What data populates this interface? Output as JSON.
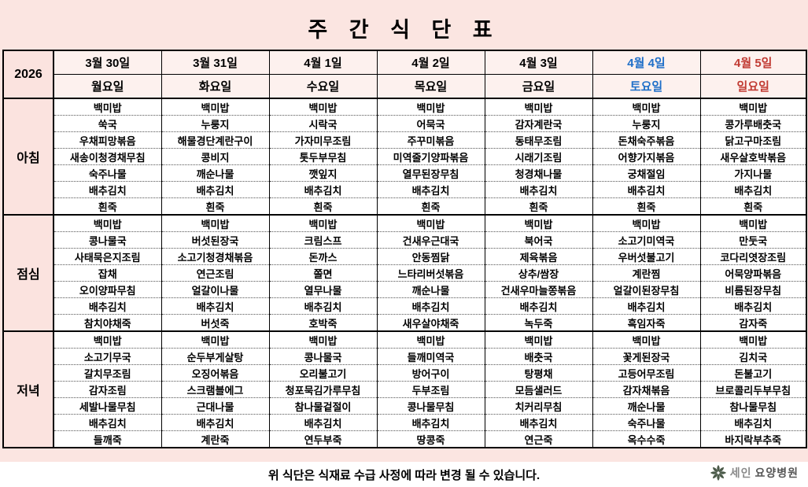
{
  "title": "주 간 식 단 표",
  "year": "2026",
  "colors": {
    "background": "#FBE5E1",
    "header_cell": "#FDF1EE",
    "saturday_text": "#1F6FC8",
    "sunday_text": "#C13B33",
    "grid_line": "#000000"
  },
  "days": [
    {
      "date": "3월 30일",
      "weekday": "월요일",
      "color": "#000000"
    },
    {
      "date": "3월 31일",
      "weekday": "화요일",
      "color": "#000000"
    },
    {
      "date": "4월 1일",
      "weekday": "수요일",
      "color": "#000000"
    },
    {
      "date": "4월 2일",
      "weekday": "목요일",
      "color": "#000000"
    },
    {
      "date": "4월 3일",
      "weekday": "금요일",
      "color": "#000000"
    },
    {
      "date": "4월 4일",
      "weekday": "토요일",
      "color": "#1F6FC8"
    },
    {
      "date": "4월 5일",
      "weekday": "일요일",
      "color": "#C13B33"
    }
  ],
  "sections": [
    {
      "label": "아침",
      "menus": [
        [
          "백미밥",
          "쑥국",
          "우채피망볶음",
          "새송이청경채무침",
          "숙주나물",
          "배추김치",
          "흰죽"
        ],
        [
          "백미밥",
          "누룽지",
          "해물경단계란구이",
          "콩비지",
          "깨순나물",
          "배추김치",
          "흰죽"
        ],
        [
          "백미밥",
          "시락국",
          "가자미무조림",
          "톳두부무침",
          "깻잎지",
          "배추김치",
          "흰죽"
        ],
        [
          "백미밥",
          "어묵국",
          "주꾸미볶음",
          "미역줄기양파볶음",
          "열무된장무침",
          "배추김치",
          "흰죽"
        ],
        [
          "백미밥",
          "감자계란국",
          "동태무조림",
          "시래기조림",
          "청경채나물",
          "배추김치",
          "흰죽"
        ],
        [
          "백미밥",
          "누룽지",
          "돈채숙주볶음",
          "어향가지볶음",
          "궁채절임",
          "배추김치",
          "흰죽"
        ],
        [
          "백미밥",
          "콩가루배춧국",
          "닭고구마조림",
          "새우살호박볶음",
          "가지나물",
          "배추김치",
          "흰죽"
        ]
      ]
    },
    {
      "label": "점심",
      "menus": [
        [
          "백미밥",
          "콩나물국",
          "사태묵은지조림",
          "잡채",
          "오이양파무침",
          "배추김치",
          "참치야채죽"
        ],
        [
          "백미밥",
          "버섯된장국",
          "소고기청경채볶음",
          "연근조림",
          "얼갈이나물",
          "배추김치",
          "버섯죽"
        ],
        [
          "백미밥",
          "크림스프",
          "돈까스",
          "쫄면",
          "열무나물",
          "배추김치",
          "호박죽"
        ],
        [
          "백미밥",
          "건새우근대국",
          "안동찜닭",
          "느타리버섯볶음",
          "깨순나물",
          "배추김치",
          "새우살야채죽"
        ],
        [
          "백미밥",
          "북어국",
          "제육볶음",
          "상추/쌈장",
          "건새우마늘쫑볶음",
          "배추김치",
          "녹두죽"
        ],
        [
          "백미밥",
          "소고기미역국",
          "우버섯불고기",
          "계란찜",
          "얼갈이된장무침",
          "배추김치",
          "흑임자죽"
        ],
        [
          "백미밥",
          "만둣국",
          "코다리엿장조림",
          "어묵양파볶음",
          "비름된장무침",
          "배추김치",
          "감자죽"
        ]
      ]
    },
    {
      "label": "저녁",
      "menus": [
        [
          "백미밥",
          "소고기무국",
          "갈치무조림",
          "감자조림",
          "세발나물무침",
          "배추김치",
          "들깨죽"
        ],
        [
          "백미밥",
          "순두부게살탕",
          "오징어볶음",
          "스크램블에그",
          "근대나물",
          "배추김치",
          "계란죽"
        ],
        [
          "백미밥",
          "콩나물국",
          "오리불고기",
          "청포묵김가루무침",
          "참나물겉절이",
          "배추김치",
          "연두부죽"
        ],
        [
          "백미밥",
          "들깨미역국",
          "방어구이",
          "두부조림",
          "콩나물무침",
          "배추김치",
          "땅콩죽"
        ],
        [
          "백미밥",
          "배춧국",
          "탕평채",
          "모듬샐러드",
          "치커리무침",
          "배추김치",
          "연근죽"
        ],
        [
          "백미밥",
          "꽃게된장국",
          "고등어무조림",
          "감자채볶음",
          "깨순나물",
          "숙주나물",
          "옥수수죽"
        ],
        [
          "백미밥",
          "김치국",
          "돈불고기",
          "브로콜리두부무침",
          "참나물무침",
          "배추김치",
          "바지락부추죽"
        ]
      ]
    }
  ],
  "footer": "위 식단은 식재료 수급 사정에 따라 변경 될 수 있습니다.",
  "logo": {
    "icon": "pinwheel-flower-icon",
    "name_light": "세인",
    "name_bold": "요양병원"
  }
}
